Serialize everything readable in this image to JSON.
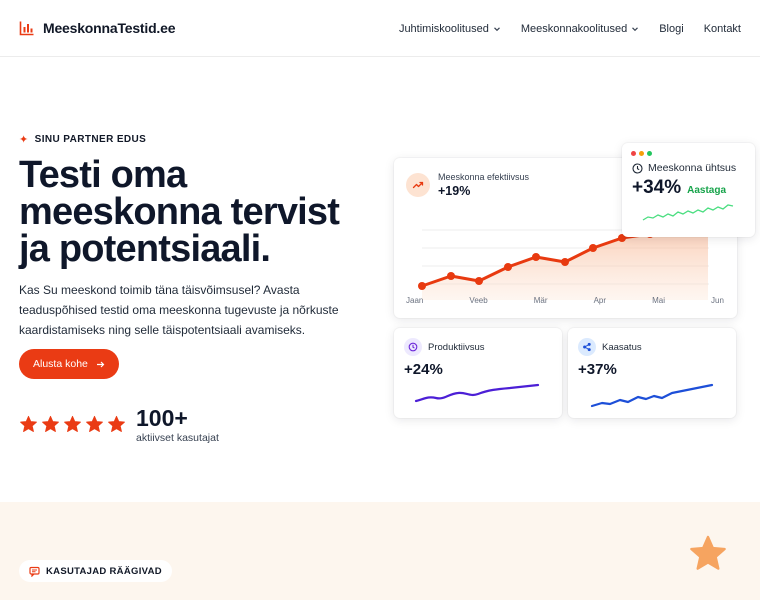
{
  "nav": {
    "logo_text": "MeeskonnaTestid.ee",
    "items": [
      {
        "label": "Juhtimiskoolitused"
      },
      {
        "label": "Meeskonnakoolitused"
      },
      {
        "label": "Blogi"
      },
      {
        "label": "Kontakt"
      }
    ]
  },
  "hero": {
    "eyebrow": "SINU PARTNER EDUS",
    "title_lines": [
      "Testi oma",
      "meeskonna tervist",
      "ja potentsiaali."
    ],
    "description": "Kas Su meeskond toimib täna täisvõimsusel? Avasta teaduspõhised testid oma meeskonna tugevuste ja nõrkuste kaardistamiseks ning selle täispotentsiaali avamiseks.",
    "cta_label": "Alusta kohe",
    "rating_stars": 5,
    "users_count": "100+",
    "users_label": "aktiivset kasutajat"
  },
  "dashboard": {
    "main": {
      "label": "Meeskonna efektiivsus",
      "value": "+19%",
      "months": [
        "Jaan",
        "Veeb",
        "Mär",
        "Apr",
        "Mai",
        "Jun"
      ]
    },
    "float": {
      "title": "Meeskonna ühtsus",
      "value": "+34%",
      "tag": "Aastaga"
    },
    "stats": [
      {
        "label": "Produktiivsus",
        "value": "+24%"
      },
      {
        "label": "Kaasatus",
        "value": "+37%"
      }
    ]
  },
  "testimonials": {
    "pill": "KASUTAJAD RÄÄGIVAD"
  },
  "colors": {
    "accent": "#ea3b14",
    "purple": "#4c1fd6",
    "blue": "#1d4fd8",
    "green": "#22c55e",
    "band": "#fdf6ee"
  }
}
